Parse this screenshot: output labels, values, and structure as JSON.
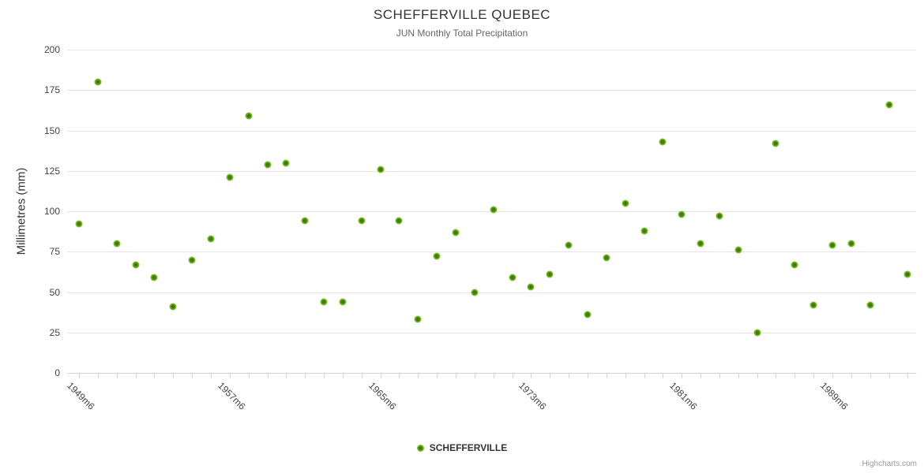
{
  "chart": {
    "title": "SCHEFFERVILLE QUEBEC",
    "subtitle": "JUN Monthly Total Precipitation",
    "y_axis_title": "Millimetres (mm)",
    "legend": {
      "label": "SCHEFFERVILLE"
    },
    "credits": "Highcharts.com"
  },
  "colors": {
    "marker_outer": "#7cbe2b",
    "marker_core": "#3e7c06",
    "gridline": "#e6e6e6",
    "axis_line": "#ccd6eb",
    "title_text": "#333333",
    "subtitle_text": "#666666",
    "axis_label_text": "#444444",
    "credits_text": "#999999"
  },
  "chart_data": {
    "type": "scatter",
    "title": "SCHEFFERVILLE QUEBEC",
    "subtitle": "JUN Monthly Total Precipitation",
    "xlabel": "",
    "ylabel": "Millimetres (mm)",
    "ylim": [
      0,
      200
    ],
    "yticks": [
      0,
      25,
      50,
      75,
      100,
      125,
      150,
      175,
      200
    ],
    "grid": "horizontal",
    "legend_position": "bottom",
    "x_tick_label_rotation": 45,
    "x_tick_every_year": true,
    "x_labeled_ticks": [
      "1949m6",
      "1957m6",
      "1965m6",
      "1973m6",
      "1981m6",
      "1989m6"
    ],
    "label_every_n_years": 8,
    "series": [
      {
        "name": "SCHEFFERVILLE",
        "x": [
          1949,
          1950,
          1951,
          1952,
          1953,
          1954,
          1955,
          1956,
          1957,
          1958,
          1959,
          1960,
          1961,
          1962,
          1963,
          1964,
          1965,
          1966,
          1967,
          1968,
          1969,
          1970,
          1971,
          1972,
          1973,
          1974,
          1975,
          1976,
          1977,
          1978,
          1979,
          1980,
          1981,
          1982,
          1983,
          1984,
          1985,
          1986,
          1987,
          1988,
          1989,
          1990,
          1991,
          1992,
          1993
        ],
        "values": [
          92,
          180,
          80,
          67,
          59,
          41,
          70,
          83,
          121,
          159,
          129,
          130,
          94,
          44,
          44,
          94,
          126,
          94,
          33,
          72,
          87,
          50,
          101,
          59,
          53,
          61,
          79,
          36,
          71,
          105,
          88,
          143,
          98,
          80,
          97,
          76,
          25,
          142,
          67,
          42,
          79,
          80,
          42,
          166,
          61
        ]
      }
    ]
  }
}
